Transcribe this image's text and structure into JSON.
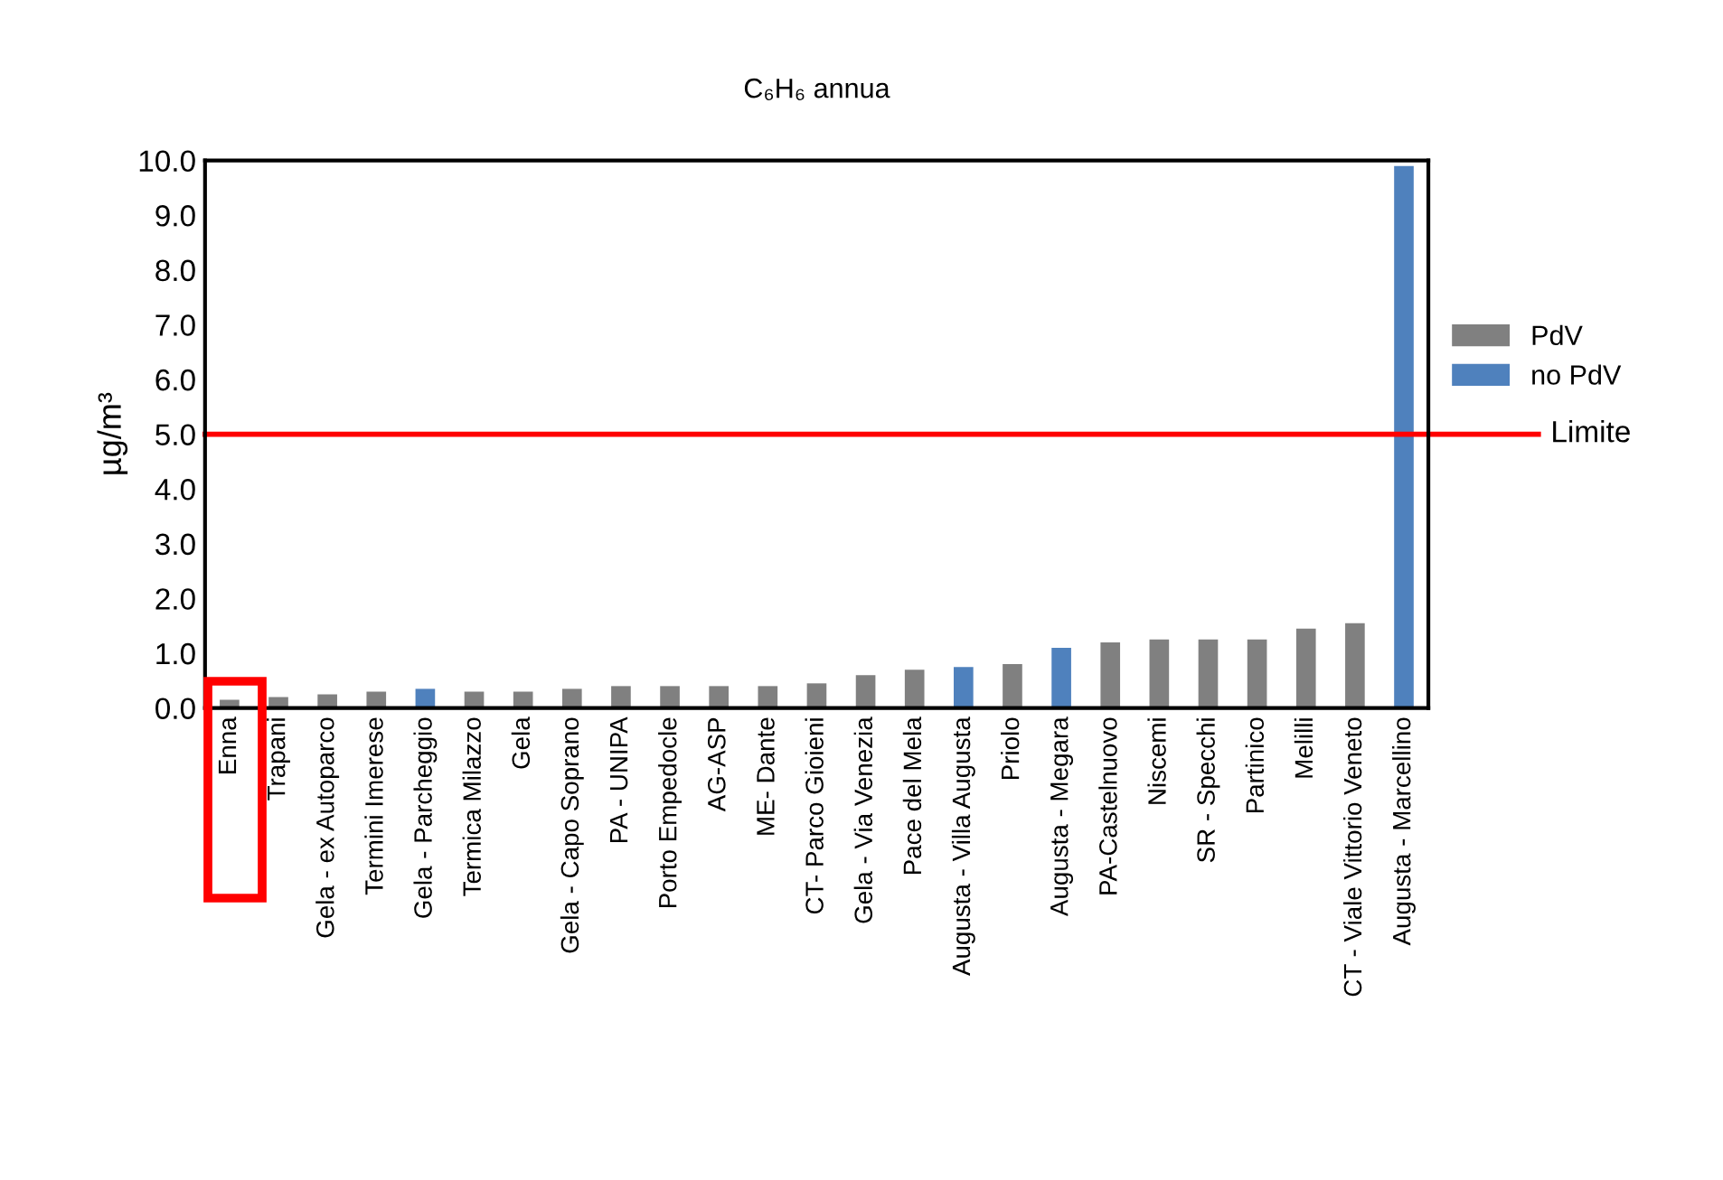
{
  "chart_data": {
    "type": "bar",
    "title": "C₆H₆ annua",
    "ylabel": "µg/m³",
    "categories": [
      "Enna",
      "Trapani",
      "Gela - ex Autoparco",
      "Termini Imerese",
      "Gela - Parcheggio",
      "Termica Milazzo",
      "Gela",
      "Gela - Capo Soprano",
      "PA - UNIPA",
      "Porto Empedocle",
      "AG-ASP",
      "ME- Dante",
      "CT- Parco Gioieni",
      "Gela - Via Venezia",
      "Pace del Mela",
      "Augusta - Villa Augusta",
      "Priolo",
      "Augusta - Megara",
      "PA-Castelnuovo",
      "Niscemi",
      "SR - Specchi",
      "Partinico",
      "Melilli",
      "CT - Viale Vittorio Veneto",
      "Augusta - Marcellino"
    ],
    "series": [
      {
        "name": "PdV",
        "color": "#808080",
        "values": [
          0.15,
          0.2,
          0.25,
          0.3,
          null,
          0.3,
          0.3,
          0.35,
          0.4,
          0.4,
          0.4,
          0.4,
          0.45,
          0.6,
          0.7,
          null,
          0.8,
          null,
          1.2,
          1.25,
          1.25,
          1.25,
          1.45,
          1.55,
          null
        ]
      },
      {
        "name": "no PdV",
        "color": "#4f81bd",
        "values": [
          null,
          null,
          null,
          null,
          0.35,
          null,
          null,
          null,
          null,
          null,
          null,
          null,
          null,
          null,
          null,
          0.75,
          null,
          1.1,
          null,
          null,
          null,
          null,
          null,
          null,
          9.9
        ]
      }
    ],
    "ylim": [
      0,
      10
    ],
    "yticks": [
      {
        "value": 0,
        "label": "0.0"
      },
      {
        "value": 1,
        "label": "1.0"
      },
      {
        "value": 2,
        "label": "2.0"
      },
      {
        "value": 3,
        "label": "3.0"
      },
      {
        "value": 4,
        "label": "4.0"
      },
      {
        "value": 5,
        "label": "5.0"
      },
      {
        "value": 6,
        "label": "6.0"
      },
      {
        "value": 7,
        "label": "7.0"
      },
      {
        "value": 8,
        "label": "8.0"
      },
      {
        "value": 9,
        "label": "9.0"
      },
      {
        "value": 10,
        "label": "10.0"
      }
    ],
    "ref_lines": [
      {
        "axis": "y",
        "value": 5,
        "label": "Limite",
        "color": "#ff0000"
      }
    ],
    "grid": false,
    "legend": "right"
  }
}
